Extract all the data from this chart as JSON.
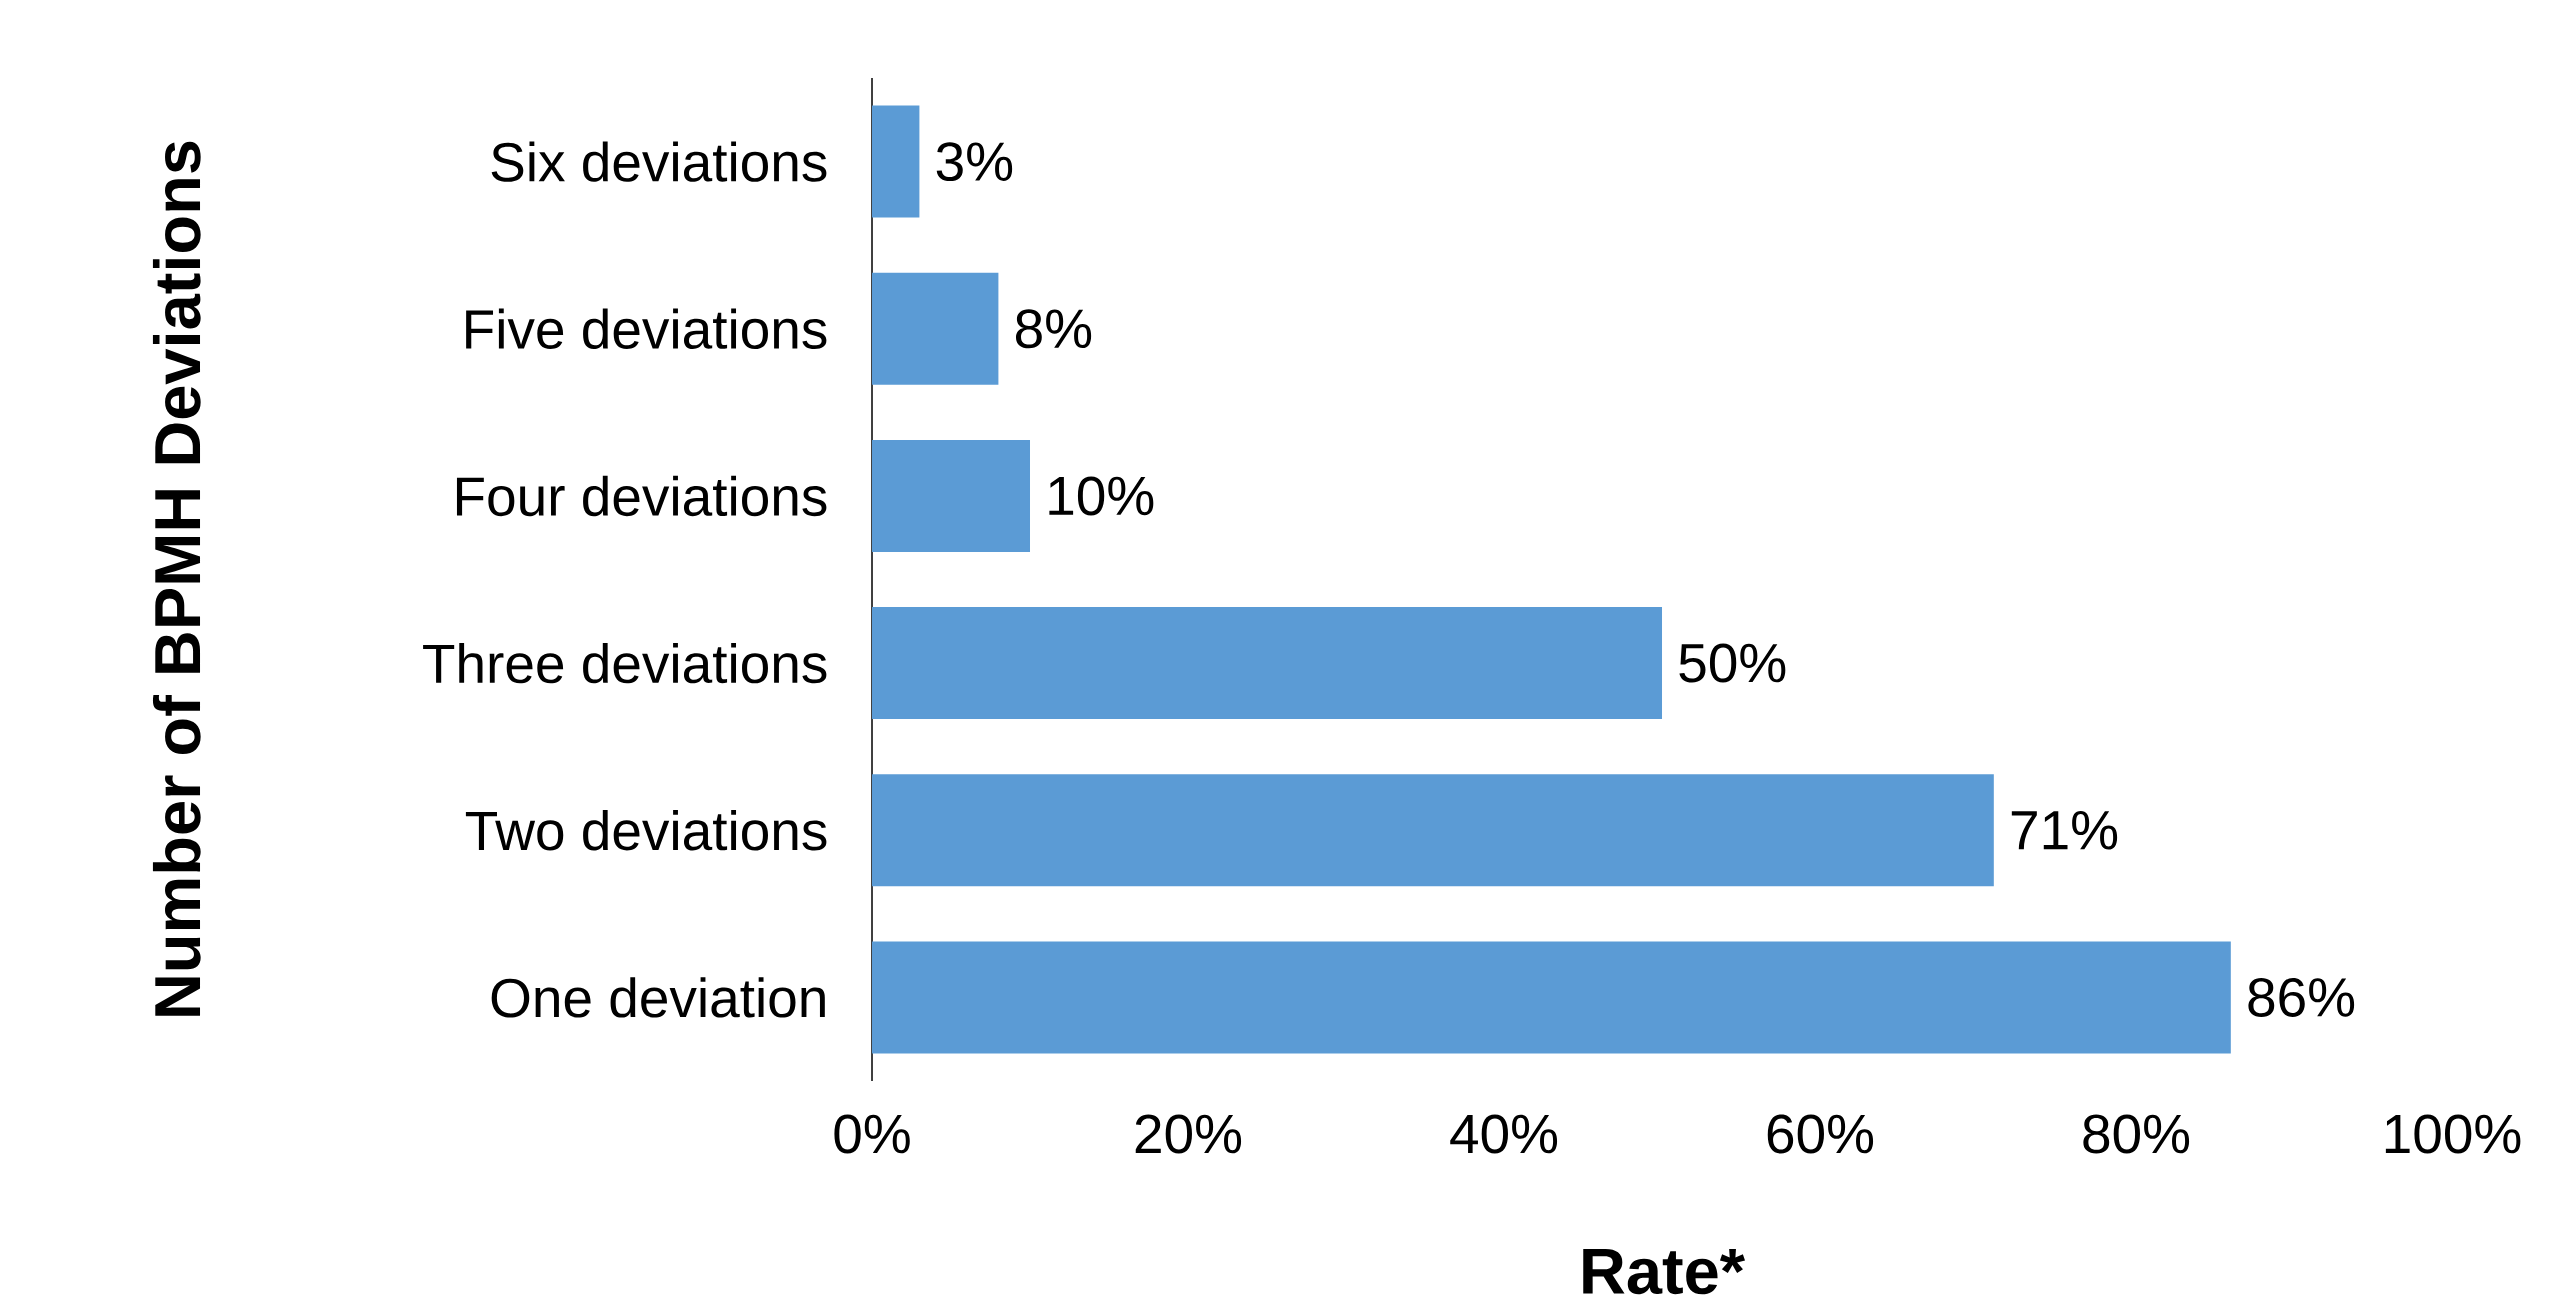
{
  "chart_data": {
    "type": "bar",
    "orientation": "horizontal",
    "categories": [
      "Six deviations",
      "Five deviations",
      "Four deviations",
      "Three deviations",
      "Two deviations",
      "One deviation"
    ],
    "values": [
      3,
      8,
      10,
      50,
      71,
      86
    ],
    "value_labels": [
      "3%",
      "8%",
      "10%",
      "50%",
      "71%",
      "86%"
    ],
    "color": "#5b9bd5",
    "xlim": [
      0,
      100
    ],
    "xticks": [
      {
        "value": 0,
        "label": "0%"
      },
      {
        "value": 20,
        "label": "20%"
      },
      {
        "value": 40,
        "label": "40%"
      },
      {
        "value": 60,
        "label": "60%"
      },
      {
        "value": 80,
        "label": "80%"
      },
      {
        "value": 100,
        "label": "100%"
      }
    ],
    "xlabel": "Rate*",
    "ylabel": "Number of BPMH Deviations"
  }
}
